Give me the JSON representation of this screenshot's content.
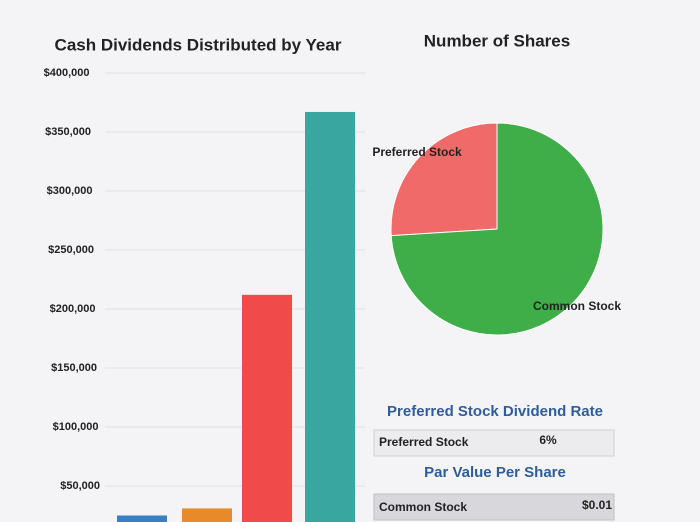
{
  "chart_data": [
    {
      "type": "bar",
      "title": "Cash Dividends Distributed by Year",
      "categories": [
        null,
        null,
        null,
        null
      ],
      "series": [
        {
          "values": [
            25000,
            31000,
            212000,
            367000
          ],
          "colors": [
            "#3a7fc1",
            "#e8892a",
            "#f04a4a",
            "#3aa6a0"
          ]
        }
      ],
      "ylim": [
        0,
        400000
      ],
      "yticks": [
        {
          "value": 50000,
          "label": "$50,000"
        },
        {
          "value": 100000,
          "label": "$100,000"
        },
        {
          "value": 150000,
          "label": "$150,000"
        },
        {
          "value": 200000,
          "label": "$200,000"
        },
        {
          "value": 250000,
          "label": "$250,000"
        },
        {
          "value": 300000,
          "label": "$300,000"
        },
        {
          "value": 350000,
          "label": "$350,000"
        },
        {
          "value": 400000,
          "label": "$400,000"
        }
      ],
      "grid": true
    },
    {
      "type": "pie",
      "title": "Number of Shares",
      "categories": [
        "Preferred Stock",
        "Common Stock"
      ],
      "values": [
        26,
        74
      ],
      "colors": [
        "#f06a6a",
        "#3fae49"
      ]
    }
  ],
  "tables": [
    {
      "title": "Preferred Stock Dividend Rate",
      "rows": [
        [
          "Preferred Stock",
          "6%"
        ]
      ]
    },
    {
      "title": "Par Value Per Share",
      "rows": [
        [
          "Common Stock",
          "$0.01"
        ]
      ]
    }
  ]
}
